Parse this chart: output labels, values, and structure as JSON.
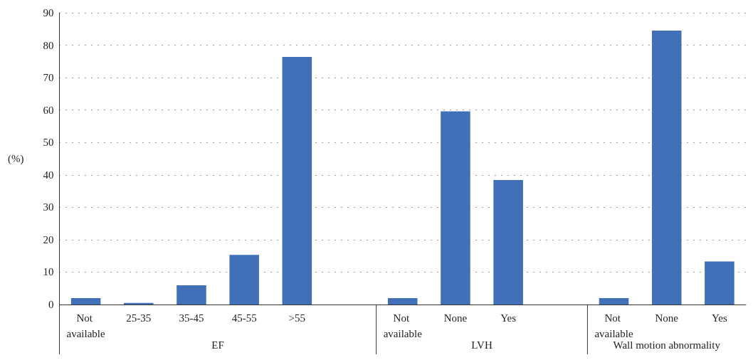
{
  "chart_data": {
    "type": "bar",
    "ylabel": "(%)",
    "categories": [
      "Not available",
      "25-35",
      "35-45",
      "45-55",
      ">55",
      null,
      "Not available",
      "None",
      "Yes",
      null,
      "Not available",
      "None",
      "Yes"
    ],
    "values": [
      2,
      0.5,
      5.9,
      15.3,
      76.4,
      null,
      2,
      59.6,
      38.4,
      null,
      2,
      84.5,
      13.3
    ],
    "color": "#4170b8",
    "ylim": [
      0,
      90
    ],
    "yticks": [
      0,
      10,
      20,
      30,
      40,
      50,
      60,
      70,
      80,
      90
    ],
    "grid": "y",
    "annotations": [
      "EF",
      "LVH",
      "Wall motion abnormality"
    ]
  }
}
